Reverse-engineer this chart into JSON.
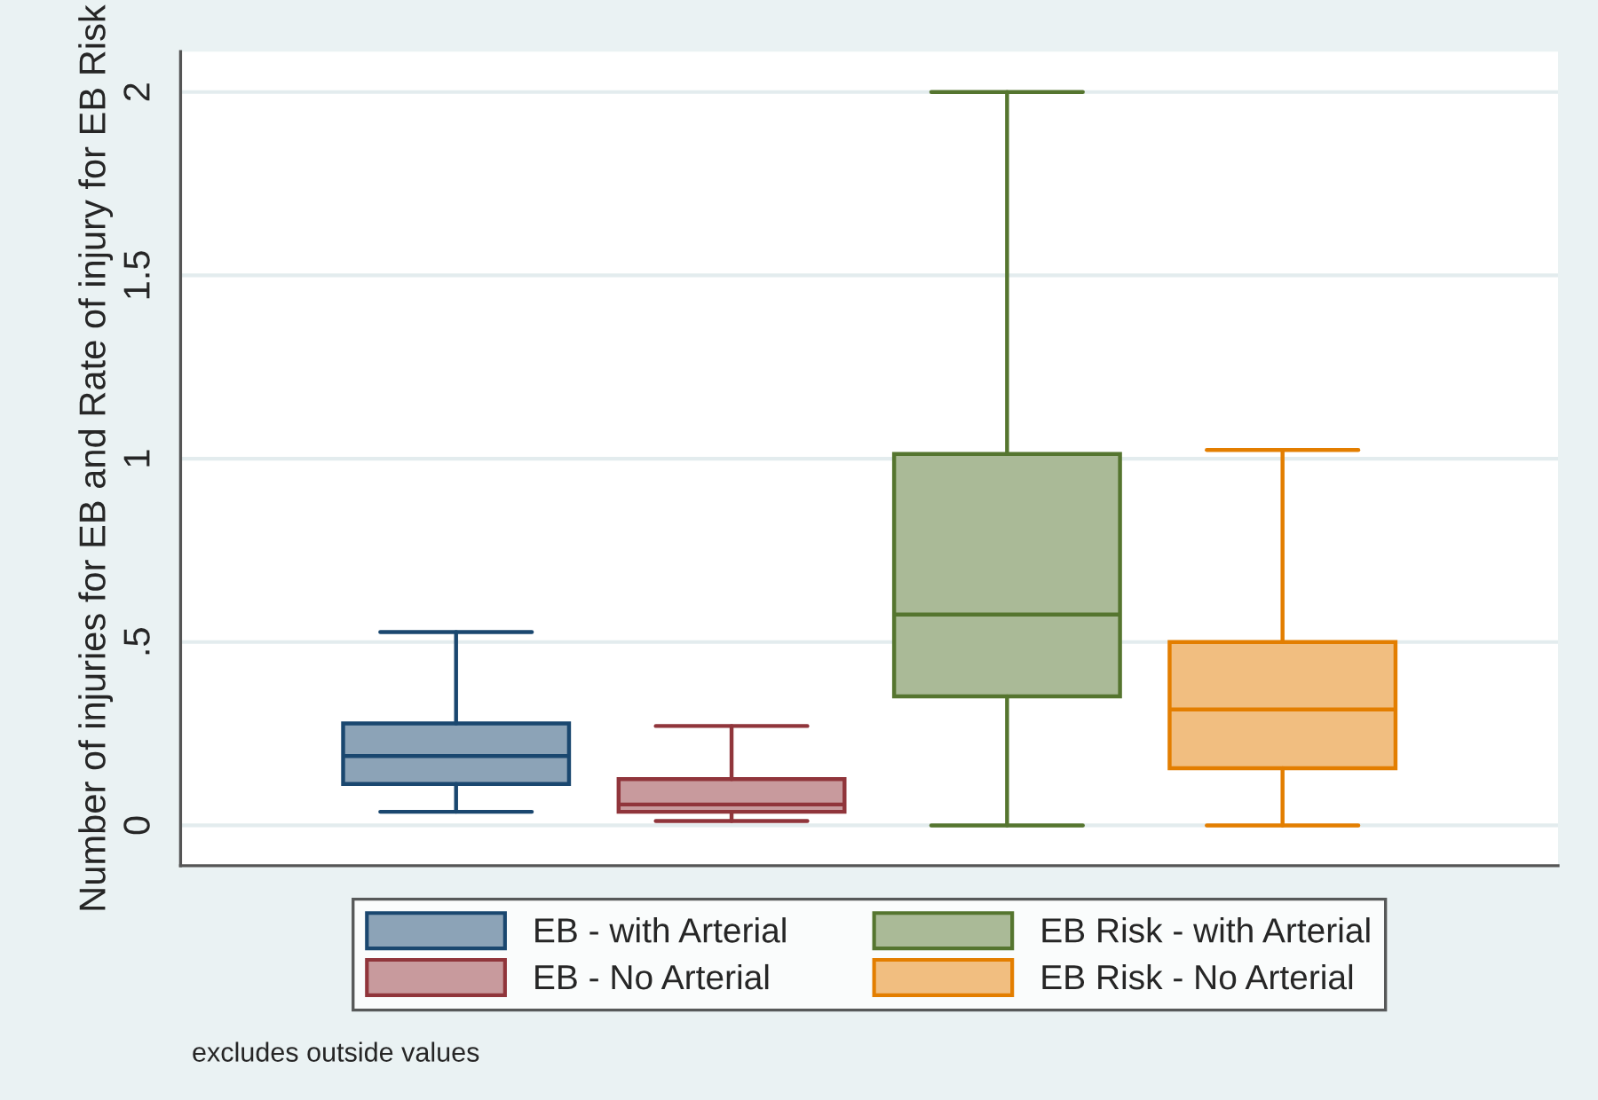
{
  "chart_data": {
    "type": "box",
    "ylabel": "Number of injuries for EB and Rate of injury for EB Risk",
    "categories": [
      null
    ],
    "series": [
      {
        "name": "EB - with Arterial",
        "color": "#1a476f",
        "boxes": [
          {
            "low": 0.037,
            "q1": 0.113,
            "median": 0.189,
            "q3": 0.278,
            "high": 0.527
          }
        ]
      },
      {
        "name": "EB - No Arterial",
        "color": "#90353b",
        "boxes": [
          {
            "low": 0.012,
            "q1": 0.037,
            "median": 0.057,
            "q3": 0.126,
            "high": 0.271
          }
        ]
      },
      {
        "name": "EB Risk - with Arterial",
        "color": "#55752f",
        "boxes": [
          {
            "low": 0,
            "q1": 0.352,
            "median": 0.575,
            "q3": 1.013,
            "high": 2
          }
        ]
      },
      {
        "name": "EB Risk - No Arterial",
        "color": "#e37e00",
        "boxes": [
          {
            "low": 0,
            "q1": 0.156,
            "median": 0.316,
            "q3": 0.5,
            "high": 1.024
          }
        ]
      }
    ],
    "ylim": [
      -0.11,
      2.11
    ],
    "yticks": [
      0,
      {
        "value": 0.5,
        "label": ".5"
      },
      1,
      1.5,
      2
    ],
    "grid": "y",
    "legend": "bottom",
    "annotations": [
      "excludes outside values"
    ]
  }
}
